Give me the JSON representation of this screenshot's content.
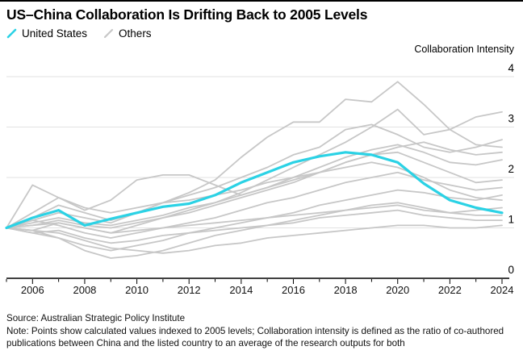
{
  "header": {
    "title": "US–China Collaboration Is Drifting Back to 2005 Levels"
  },
  "legend": {
    "items": [
      {
        "label": "United States",
        "color": "#2bd2e5"
      },
      {
        "label": "Others",
        "color": "#c7c7c7"
      }
    ]
  },
  "chart_data": {
    "type": "line",
    "title": "US–China Collaboration Is Drifting Back to 2005 Levels",
    "xlabel": "",
    "ylabel": "Collaboration Intensity",
    "ylim": [
      0,
      4
    ],
    "yticks": [
      0,
      1,
      2,
      3,
      4
    ],
    "x_range": [
      2005,
      2024
    ],
    "x": [
      2005,
      2006,
      2007,
      2008,
      2009,
      2010,
      2011,
      2012,
      2013,
      2014,
      2015,
      2016,
      2017,
      2018,
      2019,
      2020,
      2021,
      2022,
      2023,
      2024
    ],
    "xtick_labels": [
      2006,
      2008,
      2010,
      2012,
      2014,
      2016,
      2018,
      2020,
      2022,
      2024
    ],
    "grid": "horizontal gridlines at 1,2,3,4; baseline axis at 0",
    "legend_position": "top-left above plot",
    "axis_side": "right",
    "series": [
      {
        "name": "United States",
        "color": "#2bd2e5",
        "emphasis": true,
        "values": [
          1.0,
          1.2,
          1.35,
          1.05,
          1.18,
          1.3,
          1.42,
          1.48,
          1.65,
          1.9,
          2.1,
          2.3,
          2.42,
          2.5,
          2.45,
          2.3,
          1.88,
          1.55,
          1.4,
          1.3
        ]
      },
      {
        "name": "Others",
        "color": "#c7c7c7",
        "emphasis": false,
        "values_list": [
          [
            1.0,
            1.15,
            1.3,
            1.2,
            1.1,
            1.3,
            1.5,
            1.7,
            1.95,
            2.4,
            2.8,
            3.1,
            3.1,
            3.55,
            3.5,
            3.9,
            3.45,
            2.95,
            2.65,
            2.6
          ],
          [
            1.0,
            1.05,
            1.15,
            1.05,
            1.0,
            1.1,
            1.2,
            1.35,
            1.5,
            1.7,
            1.95,
            2.2,
            2.45,
            2.7,
            3.0,
            3.35,
            2.85,
            2.95,
            3.2,
            3.3
          ],
          [
            1.0,
            1.2,
            1.45,
            1.3,
            1.15,
            1.3,
            1.5,
            1.65,
            1.8,
            2.0,
            2.2,
            2.45,
            2.6,
            2.95,
            3.05,
            2.85,
            2.6,
            2.5,
            2.6,
            2.75
          ],
          [
            1.0,
            0.95,
            1.1,
            1.0,
            0.9,
            1.05,
            1.2,
            1.3,
            1.45,
            1.6,
            1.75,
            1.9,
            2.1,
            2.3,
            2.45,
            2.6,
            2.7,
            2.55,
            2.45,
            2.5
          ],
          [
            1.0,
            1.1,
            1.2,
            1.1,
            1.05,
            1.15,
            1.25,
            1.4,
            1.5,
            1.65,
            1.8,
            2.0,
            2.2,
            2.4,
            2.55,
            2.65,
            2.5,
            2.3,
            2.25,
            2.35
          ],
          [
            1.0,
            1.3,
            1.6,
            1.35,
            1.55,
            1.95,
            2.05,
            2.05,
            1.85,
            1.65,
            1.8,
            1.95,
            2.1,
            2.3,
            2.45,
            2.5,
            2.3,
            2.1,
            1.9,
            1.95
          ],
          [
            1.0,
            1.15,
            1.05,
            0.9,
            0.8,
            0.9,
            1.0,
            1.1,
            1.2,
            1.35,
            1.5,
            1.6,
            1.75,
            1.9,
            2.0,
            2.1,
            1.95,
            1.85,
            1.75,
            1.8
          ],
          [
            1.0,
            0.9,
            0.8,
            0.65,
            0.55,
            0.65,
            0.75,
            0.9,
            1.0,
            1.1,
            1.2,
            1.3,
            1.45,
            1.55,
            1.65,
            1.75,
            1.7,
            1.6,
            1.55,
            1.65
          ],
          [
            1.0,
            0.95,
            0.8,
            0.55,
            0.4,
            0.45,
            0.55,
            0.7,
            0.85,
            0.95,
            1.05,
            1.15,
            1.25,
            1.35,
            1.45,
            1.5,
            1.4,
            1.3,
            1.35,
            1.4
          ],
          [
            1.0,
            1.05,
            1.1,
            1.0,
            0.9,
            0.95,
            1.0,
            1.05,
            1.1,
            1.15,
            1.2,
            1.25,
            1.3,
            1.35,
            1.4,
            1.45,
            1.35,
            1.3,
            1.25,
            1.25
          ],
          [
            1.0,
            0.9,
            0.95,
            0.8,
            0.7,
            0.75,
            0.85,
            0.9,
            0.95,
            1.0,
            1.05,
            1.1,
            1.2,
            1.25,
            1.3,
            1.35,
            1.25,
            1.2,
            1.15,
            1.15
          ],
          [
            1.0,
            0.95,
            0.9,
            0.75,
            0.6,
            0.55,
            0.5,
            0.55,
            0.65,
            0.7,
            0.8,
            0.85,
            0.9,
            0.95,
            1.0,
            1.05,
            1.05,
            1.0,
            1.0,
            1.05
          ],
          [
            1.0,
            1.85,
            1.6,
            1.4,
            1.3,
            1.4,
            1.5,
            1.55,
            1.65,
            1.75,
            1.9,
            2.0,
            2.1,
            2.2,
            2.3,
            2.2,
            2.0,
            1.75,
            1.6,
            1.55
          ]
        ]
      }
    ],
    "colors": {
      "us_line": "#2bd2e5",
      "others_line": "#c7c7c7",
      "gridline": "#e2e2e2",
      "axis": "#000000"
    }
  },
  "footer": {
    "source": "Source: Australian Strategic Policy Institute",
    "note": "Note: Points show calculated values indexed to 2005 levels; Collaboration intensity is defined as the ratio of co-authored publications between China and the listed country to an average of the research outputs for both"
  }
}
